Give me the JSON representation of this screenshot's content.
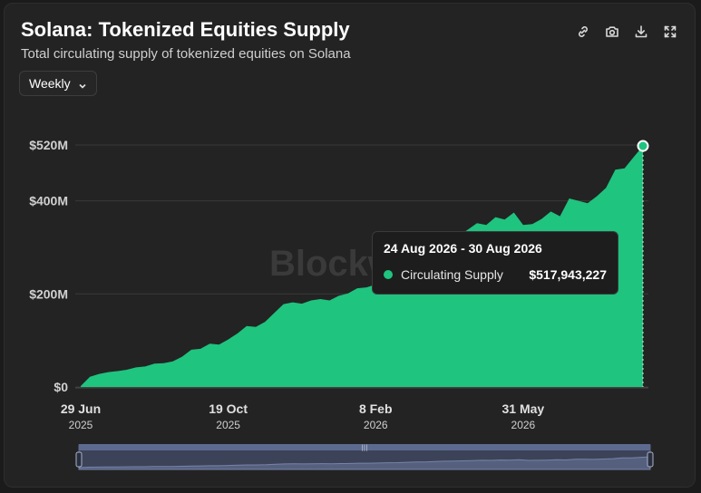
{
  "header": {
    "title": "Solana: Tokenized Equities Supply",
    "subtitle": "Total circulating supply of tokenized equities on Solana"
  },
  "toolbar": {
    "icons": [
      "link-icon",
      "camera-icon",
      "download-icon",
      "fullscreen-icon"
    ]
  },
  "frequency": {
    "selected": "Weekly"
  },
  "tooltip": {
    "date": "24 Aug 2026 - 30 Aug 2026",
    "series": "Circulating Supply",
    "value": "$517,943,227"
  },
  "chart_data": {
    "type": "area",
    "title": "Solana: Tokenized Equities Supply",
    "subtitle": "Total circulating supply of tokenized equities on Solana",
    "xlabel": "",
    "ylabel": "",
    "ylim": [
      0,
      520000000
    ],
    "grid": true,
    "legend": "none",
    "watermark": "Blockworks",
    "color": "#1fc47f",
    "y_ticks": [
      {
        "value": 0,
        "label": "$0"
      },
      {
        "value": 200000000,
        "label": "$200M"
      },
      {
        "value": 400000000,
        "label": "$400M"
      },
      {
        "value": 520000000,
        "label": "$520M"
      }
    ],
    "x_ticks": [
      {
        "index": 0,
        "date": "29 Jun",
        "year": "2025"
      },
      {
        "index": 16,
        "date": "19 Oct",
        "year": "2025"
      },
      {
        "index": 32,
        "date": "8 Feb",
        "year": "2026"
      },
      {
        "index": 48,
        "date": "31 May",
        "year": "2026"
      }
    ],
    "series": [
      {
        "name": "Circulating Supply",
        "x_start": "29 Jun 2025",
        "interval": "weekly",
        "values": [
          2000000,
          22000000,
          28000000,
          32000000,
          34000000,
          37000000,
          42000000,
          44000000,
          50000000,
          51000000,
          55000000,
          65000000,
          80000000,
          82000000,
          93000000,
          91000000,
          102000000,
          115000000,
          131000000,
          129000000,
          140000000,
          159000000,
          178000000,
          182000000,
          179000000,
          186000000,
          189000000,
          186000000,
          196000000,
          201000000,
          212000000,
          214000000,
          220000000,
          232000000,
          240000000,
          255000000,
          268000000,
          275000000,
          290000000,
          308000000,
          316000000,
          325000000,
          338000000,
          352000000,
          348000000,
          365000000,
          360000000,
          375000000,
          348000000,
          350000000,
          361000000,
          377000000,
          367000000,
          405000000,
          400000000,
          395000000,
          410000000,
          428000000,
          467000000,
          470000000,
          494000000,
          517943227
        ]
      }
    ]
  }
}
